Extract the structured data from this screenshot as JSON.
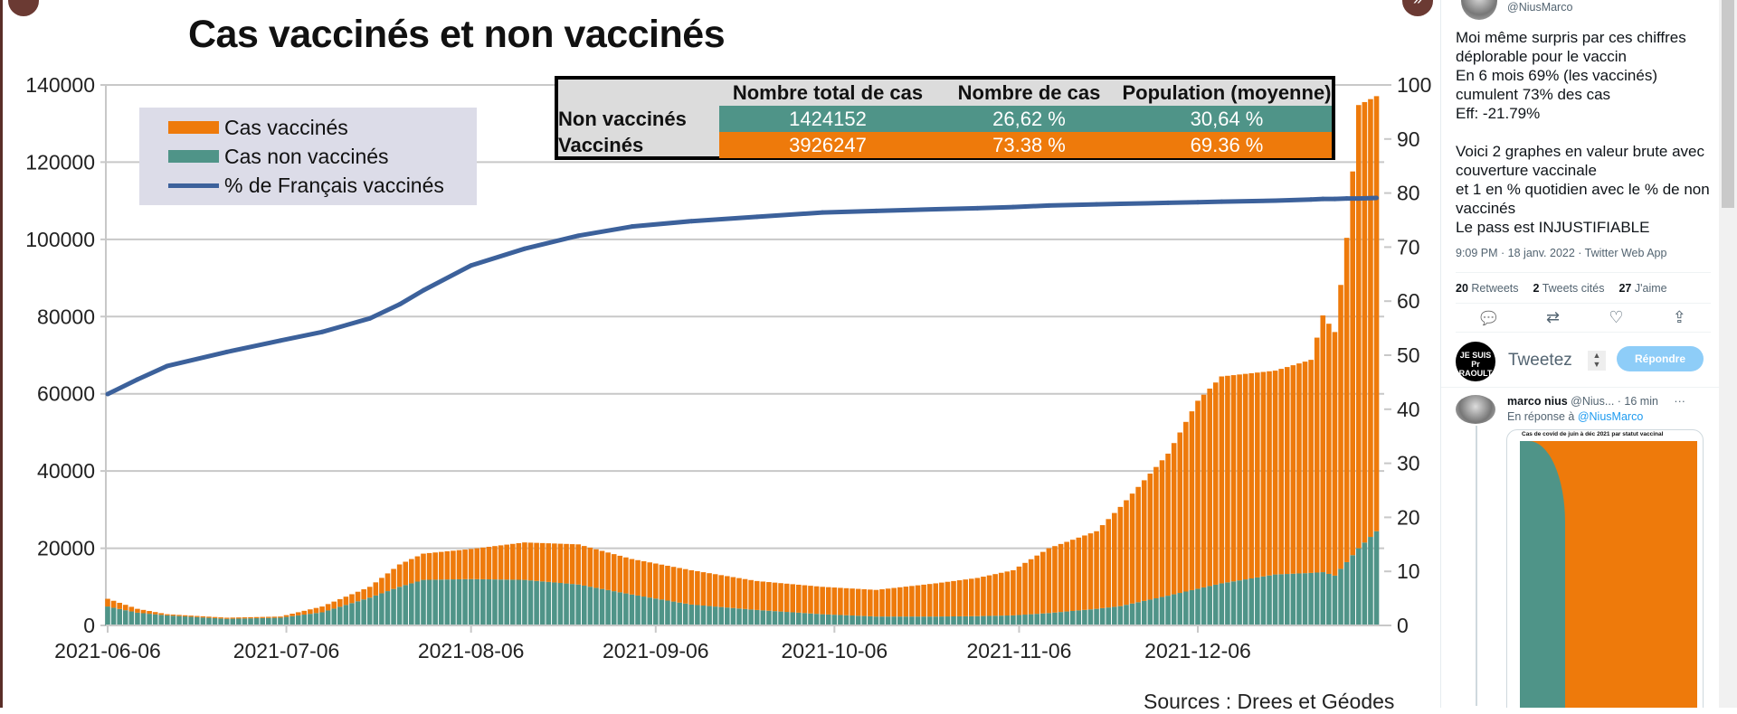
{
  "viewer": {
    "prev_icon": "chevron-up-icon",
    "next_icon": "double-chevron-right-icon",
    "prev_glyph": "^",
    "next_glyph": "»"
  },
  "chart_data": {
    "type": "bar",
    "stacked": true,
    "title": "Cas vaccinés et non vaccinés",
    "x": [
      "2021-06-06",
      "2021-06-11",
      "2021-06-16",
      "2021-06-26",
      "2021-07-05",
      "2021-07-12",
      "2021-07-20",
      "2021-07-25",
      "2021-07-29",
      "2021-08-06",
      "2021-08-15",
      "2021-08-24",
      "2021-09-02",
      "2021-09-12",
      "2021-09-23",
      "2021-10-04",
      "2021-10-13",
      "2021-10-23",
      "2021-10-30",
      "2021-11-05",
      "2021-11-11",
      "2021-11-19",
      "2021-11-23",
      "2021-12-01",
      "2021-12-06",
      "2021-12-10",
      "2021-12-19",
      "2021-12-25",
      "2021-12-27",
      "2021-12-29",
      "2021-12-31",
      "2022-01-02",
      "2022-01-05"
    ],
    "series": [
      {
        "name": "Cas non vaccinés",
        "type": "bar",
        "axis": "left",
        "color": "#4f9488",
        "values": [
          4900,
          3300,
          2600,
          1700,
          2000,
          3400,
          7200,
          10000,
          11800,
          12000,
          11800,
          10600,
          8000,
          5400,
          4000,
          2900,
          2300,
          2300,
          2400,
          2600,
          3200,
          4300,
          5000,
          7700,
          9500,
          10900,
          13200,
          13600,
          13800,
          12900,
          16400,
          20000,
          24400
        ]
      },
      {
        "name": "Cas vaccinés",
        "type": "bar",
        "axis": "left",
        "color": "#ee7a0b",
        "values": [
          2000,
          1000,
          300,
          300,
          300,
          1500,
          2800,
          5800,
          6800,
          7800,
          9700,
          10400,
          9200,
          8900,
          7500,
          7100,
          6900,
          8600,
          9900,
          11700,
          16800,
          20100,
          25700,
          36800,
          48700,
          53600,
          52800,
          55200,
          66500,
          63100,
          84000,
          114800,
          112700
        ]
      },
      {
        "name": "% de Français vaccinés",
        "type": "line",
        "axis": "right",
        "color": "#3c619b",
        "values": [
          42.8,
          45.5,
          48,
          50.6,
          52.7,
          54.3,
          56.8,
          59.4,
          62,
          66.6,
          69.7,
          72.1,
          73.8,
          74.8,
          75.6,
          76.4,
          76.7,
          77,
          77.2,
          77.4,
          77.7,
          77.9,
          78,
          78.2,
          78.3,
          78.4,
          78.6,
          78.8,
          78.9,
          78.9,
          79,
          79,
          79.1
        ]
      }
    ],
    "legend_order": [
      "Cas vaccinés",
      "Cas non vaccinés",
      "% de Français vaccinés"
    ],
    "legend_placement": "top-left",
    "ylim": [
      0,
      140000
    ],
    "y2lim": [
      0,
      100
    ],
    "yticks": [
      "0",
      "20000",
      "40000",
      "60000",
      "80000",
      "100000",
      "120000",
      "140000"
    ],
    "y2ticks": [
      "0",
      "10",
      "20",
      "30",
      "40",
      "50",
      "60",
      "70",
      "80",
      "90",
      "100"
    ],
    "xticks": [
      "2021-06-06",
      "2021-07-06",
      "2021-08-06",
      "2021-09-06",
      "2021-10-06",
      "2021-11-06",
      "2021-12-06"
    ],
    "grid": true,
    "sources": "Sources : Drees et Géodes",
    "table": {
      "headers": [
        "",
        "Nombre total de cas",
        "Nombre de cas",
        "Population (moyenne)"
      ],
      "rows": [
        [
          "Non vaccinés",
          "1424152",
          "26,62 %",
          "30,64 %"
        ],
        [
          "Vaccinés",
          "3926247",
          "73.38 %",
          "69.36 %"
        ]
      ]
    }
  },
  "tweet": {
    "handle": "@NiusMarco",
    "text": "Moi même surpris par ces chiffres déplorable pour le vaccin\nEn 6 mois 69% (les vaccinés) cumulent 73% des cas\nEff: -21.79%\n\nVoici 2 graphes en valeur brute avec couverture vaccinale\net 1 en % quotidien avec le % de non vaccinés\nLe pass est INJUSTIFIABLE",
    "meta": "9:09 PM · 18 janv. 2022 · Twitter Web App",
    "stats": [
      {
        "count": "20",
        "label": "Retweets"
      },
      {
        "count": "2",
        "label": "Tweets cités"
      },
      {
        "count": "27",
        "label": "J'aime"
      }
    ],
    "actions": [
      {
        "name": "reply-icon",
        "glyph": "💬"
      },
      {
        "name": "retweet-icon",
        "glyph": "⇄"
      },
      {
        "name": "like-icon",
        "glyph": "♡"
      },
      {
        "name": "share-icon",
        "glyph": "⇪"
      }
    ]
  },
  "reply_box": {
    "avatar_text": "JE SUIS Pr RAOULT",
    "placeholder": "Tweetez",
    "button": "Répondre"
  },
  "reply_tweet": {
    "name": "marco nius",
    "handle": "@Nius...",
    "time": "· 16 min",
    "more": "···",
    "in_reply_prefix": "En réponse à ",
    "in_reply_handle": "@NiusMarco",
    "image_title": "Cas de covid de juin à déc 2021 par statut vaccinal"
  }
}
